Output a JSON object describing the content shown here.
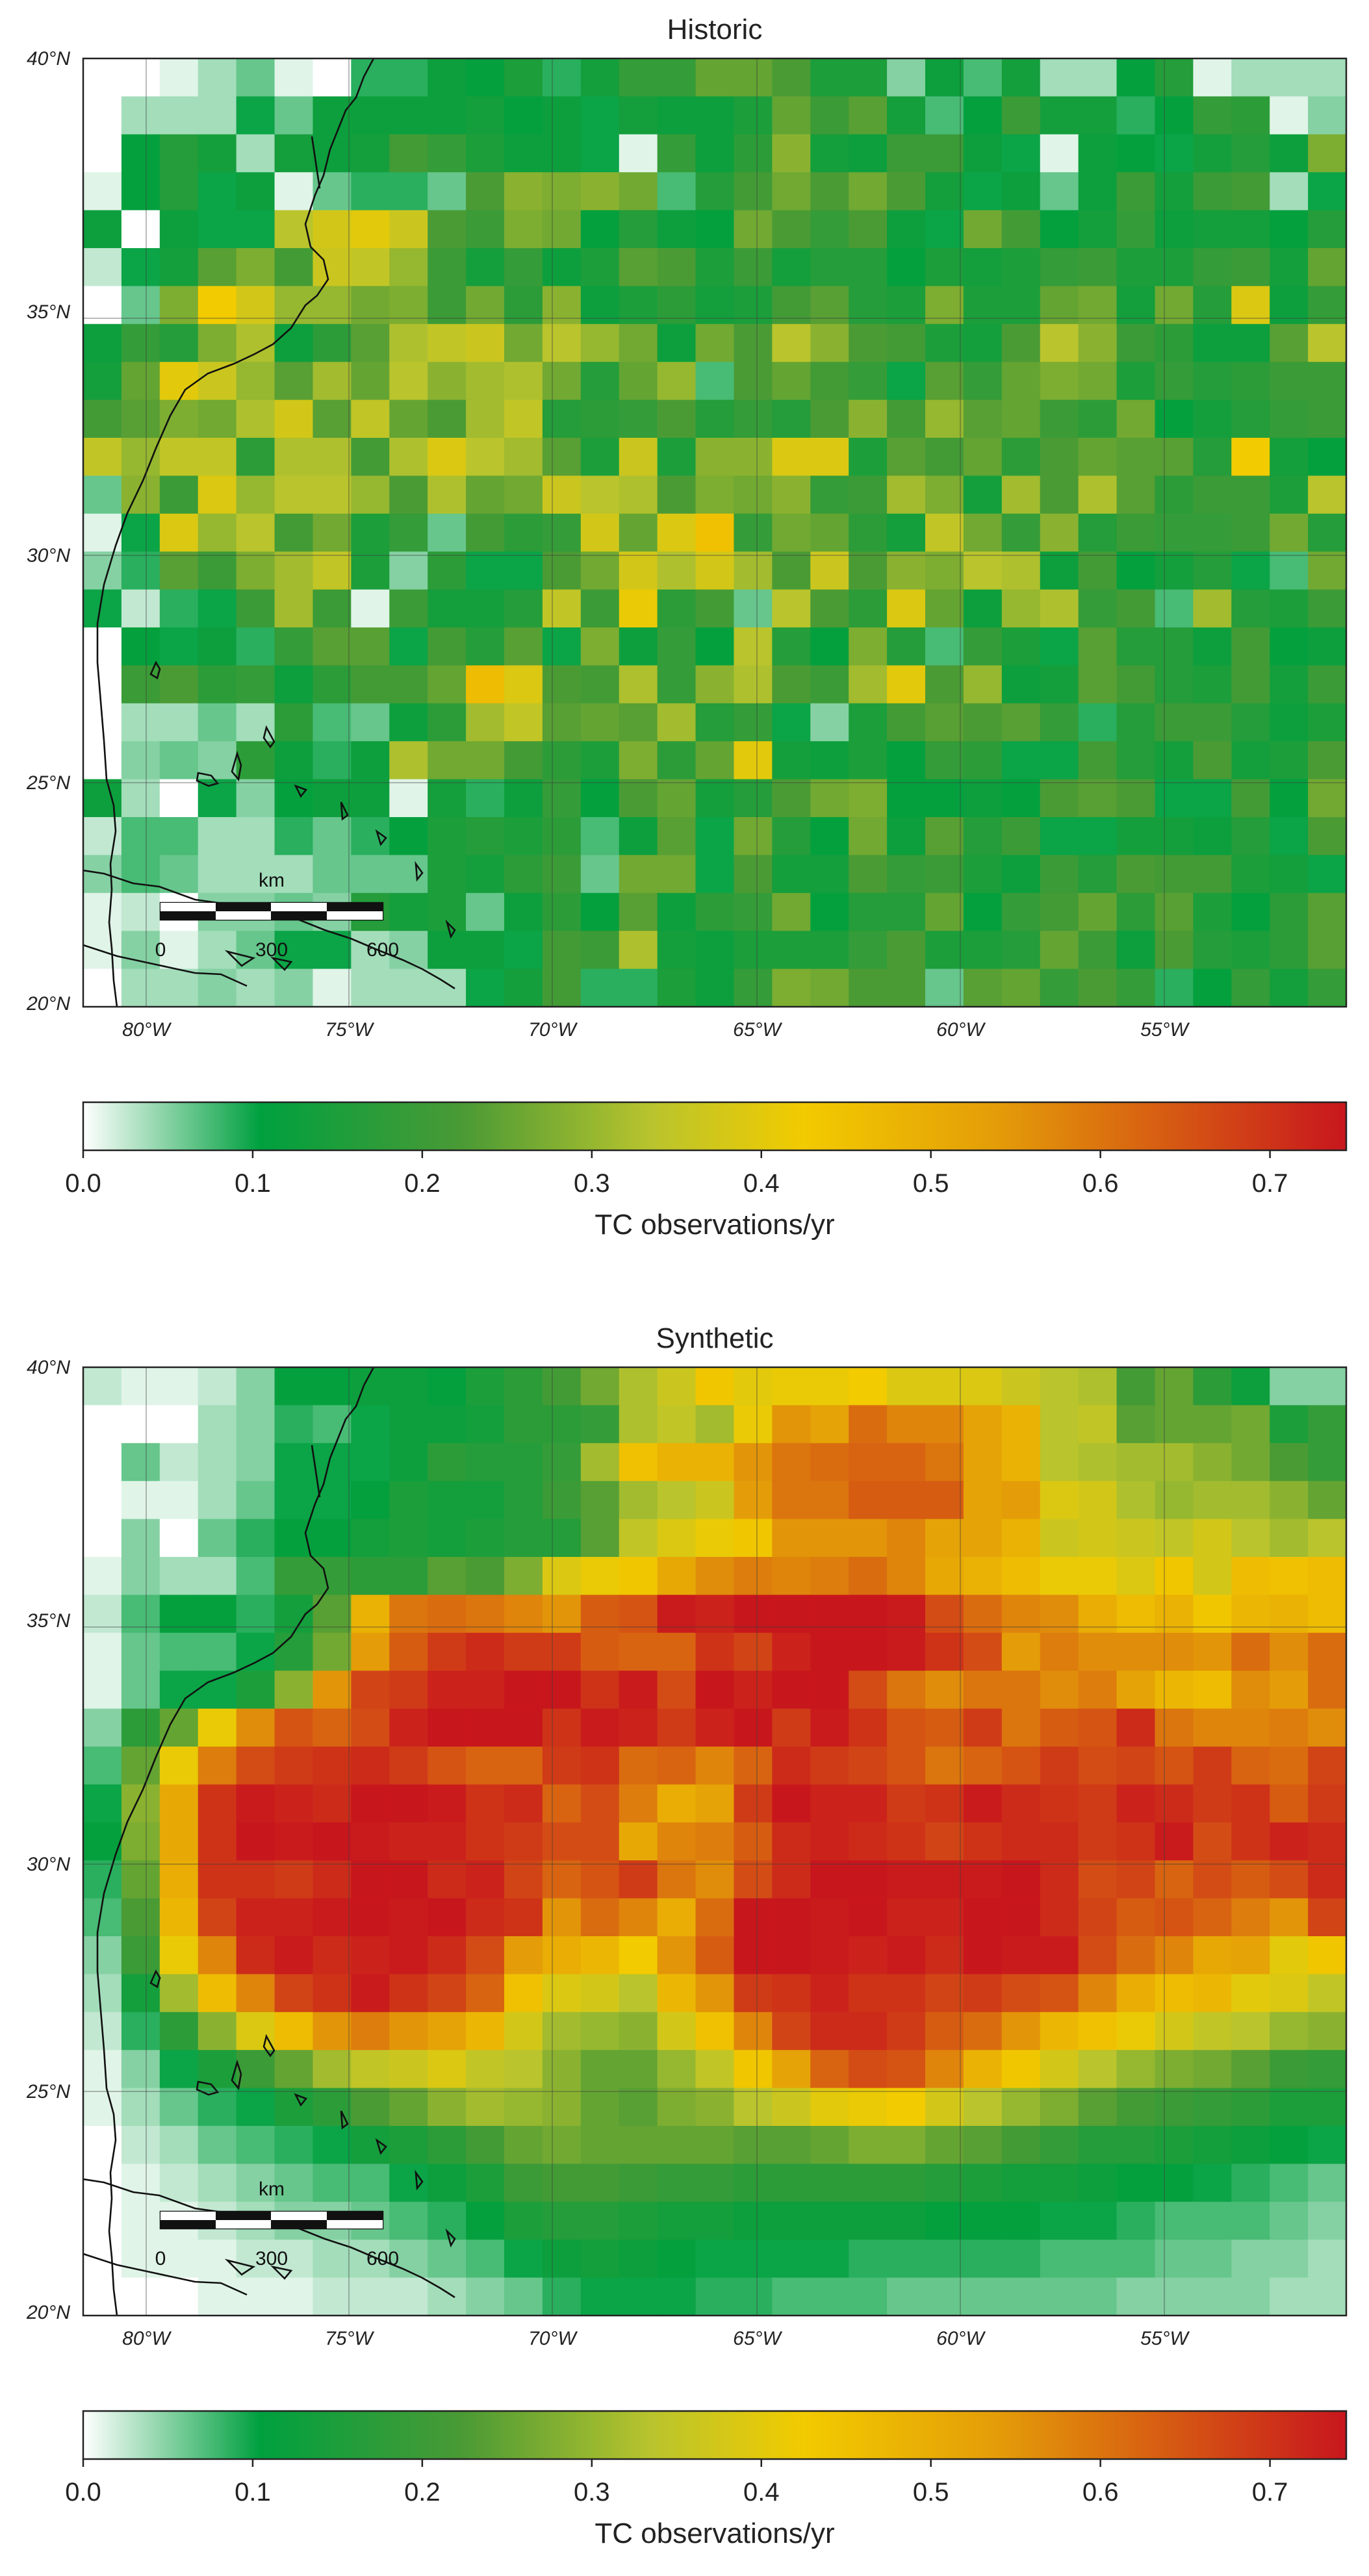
{
  "panels": [
    {
      "title": "Historic",
      "grid": [
        "0,0,1,3,5,1,0,7,7,10,9,12,7,11,15,15,20,20,18,12,12,4,10,6,11,3,3,9,13,1,3,3,3",
        "0,3,3,3,8,5,10,10,10,10,11,9,10,8,11,10,10,12,20,16,19,11,6,9,16,11,11,7,9,15,14,1,4",
        "0,9,13,11,3,11,10,11,17,15,12,10,10,8,1,15,10,14,23,11,10,16,16,10,8,1,10,9,8,11,13,10,22",
        "1,9,13,8,10,1,5,7,7,5,18,23,22,23,21,6,13,17,21,18,21,18,11,8,10,5,10,16,11,16,17,3,8",
        "10,0,10,8,8,27,30,32,29,18,16,22,21,9,13,10,9,21,18,15,18,10,8,21,17,9,11,15,10,11,11,9,13",
        "2,8,11,19,22,17,29,28,24,16,11,15,10,12,19,18,12,16,11,13,13,9,12,11,12,15,16,12,12,15,16,11,20",
        "0,5,22,34,30,24,24,21,22,16,21,14,23,10,12,14,11,12,17,19,13,12,22,12,12,20,21,11,21,13,31,10,15",
        "10,15,13,22,26,10,14,19,26,28,29,21,27,24,21,10,21,18,27,23,18,17,12,11,18,27,23,16,14,10,10,19,27",
        "11,20,32,29,24,19,25,20,27,23,25,26,21,13,20,24,6,18,20,17,15,8,19,15,20,22,21,12,15,13,14,16,16",
        "17,19,22,21,26,30,19,28,20,18,25,28,13,14,15,18,13,15,13,18,23,17,24,19,20,16,14,21,9,11,13,15,16",
        "28,24,28,28,14,26,26,17,26,31,27,25,19,12,29,12,23,23,31,31,12,19,17,20,14,18,20,19,19,13,34,11,9",
        "5,23,16,31,24,27,27,24,18,26,20,21,29,27,26,18,22,21,23,15,16,25,22,11,25,18,26,19,14,16,16,12,27",
        "1,8,31,24,27,17,21,12,15,5,17,14,15,30,20,31,36,15,21,20,14,11,28,21,15,23,13,16,15,15,16,21,13",
        "4,7,19,16,22,25,28,12,4,14,8,8,18,21,30,26,30,25,18,29,18,23,22,27,26,10,17,9,11,13,8,6,21",
        "8,2,7,8,16,25,16,1,16,11,11,13,28,16,33,14,17,5,27,18,14,31,20,10,24,26,15,17,6,25,13,12,16",
        "0,9,8,10,7,15,19,19,8,17,13,19,8,22,10,15,9,27,13,9,22,13,6,15,12,8,19,13,13,10,17,9,10",
        "0,16,18,14,15,10,14,17,17,20,37,31,18,17,26,15,23,26,18,16,25,32,18,24,10,11,19,17,13,12,17,11,16",
        "0,3,3,5,3,14,6,5,10,14,25,28,19,20,19,25,13,15,8,4,12,17,19,18,19,15,7,13,16,16,13,10,12",
        "0,4,5,4,14,10,7,10,26,21,21,17,14,12,22,14,20,32,11,10,12,9,15,14,8,8,17,13,11,18,11,12,18",
        "10,3,0,8,4,9,10,10,1,11,7,10,15,9,18,20,11,13,18,21,22,9,9,10,9,18,19,18,8,8,17,9,21",
        "2,6,6,3,3,7,5,7,9,12,13,12,14,6,10,19,8,21,13,9,21,10,19,13,16,8,8,11,11,10,13,8,18",
        "4,6,5,3,3,3,5,5,5,12,11,14,16,5,21,21,8,18,11,11,18,15,16,12,10,16,13,18,17,17,12,11,8",
        "1,2,0,4,4,5,4,13,11,12,5,10,14,9,19,10,14,15,21,9,13,13,20,9,15,17,20,14,19,12,9,14,19",
        "1,4,1,3,5,8,8,3,4,10,10,8,17,16,26,11,10,12,12,12,15,18,12,12,13,20,16,10,18,13,12,14,19",
        "0,3,3,4,3,4,1,3,3,3,8,11,17,7,7,12,10,15,22,21,18,18,5,19,20,15,18,15,7,9,15,11,15"
      ]
    },
    {
      "title": "Synthetic",
      "grid": [
        "2,1,1,2,4,9,9,10,10,9,12,14,17,21,26,29,35,32,33,33,34,31,31,31,29,27,26,17,20,14,10,4,4",
        "0,0,0,3,4,7,6,8,10,10,11,14,14,15,26,28,25,33,44,42,49,46,46,42,39,27,28,19,20,20,21,12,15",
        "0,5,2,3,4,8,8,8,10,14,13,13,15,25,36,39,39,44,48,49,50,50,48,42,39,27,26,25,25,23,21,18,15",
        "0,1,1,3,5,8,8,9,12,11,11,13,16,19,25,27,29,43,48,48,51,51,51,42,43,31,30,26,24,25,25,23,20",
        "0,4,0,5,7,9,9,11,12,11,12,13,13,19,28,31,33,35,44,44,44,46,42,42,39,29,30,29,28,30,27,25,27",
        "1,4,3,3,6,15,15,14,14,19,18,22,31,33,35,41,45,47,46,47,49,46,41,39,37,33,33,31,35,30,37,36,37",
        "2,6,9,9,7,11,19,39,48,49,48,46,44,51,52,59,58,60,62,60,61,59,53,49,46,45,40,37,39,35,38,39,37",
        "1,5,6,6,8,13,21,43,51,55,57,55,55,51,50,50,56,54,58,61,60,59,56,53,43,47,45,45,45,44,49,45,49",
        "1,5,8,8,12,23,44,54,55,58,58,61,62,56,59,53,60,58,60,60,53,48,45,48,48,45,47,42,38,37,45,43,49",
        "4,14,20,33,45,52,50,53,58,60,61,60,56,59,58,55,58,62,55,59,56,52,51,55,48,51,52,57,48,46,46,47,45",
        "6,20,33,47,53,55,56,57,55,52,50,50,55,56,49,50,46,50,57,55,54,52,48,50,52,55,53,54,52,55,50,49,54",
        "8,23,41,56,59,58,57,61,60,59,56,57,50,53,47,40,42,55,60,58,58,55,56,59,57,56,55,58,57,55,56,51,55",
        "9,22,41,56,60,59,60,59,58,58,56,55,53,53,41,46,47,51,57,58,57,56,54,56,57,57,55,56,59,53,56,58,57",
        "7,20,40,56,56,55,57,61,60,57,58,54,50,52,55,48,45,53,57,61,62,59,59,59,60,57,53,54,50,53,51,53,57",
        "6,18,38,54,58,58,59,61,59,60,57,56,44,49,46,40,49,60,60,59,60,58,58,60,61,57,54,51,52,50,47,44,54",
        "4,16,33,46,57,59,57,58,59,57,53,43,40,38,34,44,51,61,61,59,58,59,57,61,59,59,53,49,46,41,42,32,35",
        "3,11,25,37,46,54,56,59,56,54,50,36,31,30,27,38,44,55,56,58,56,56,54,55,53,52,46,40,37,38,32,31,28",
        "2,7,14,23,31,37,44,47,44,42,38,30,25,24,23,30,36,46,54,57,57,55,51,49,44,38,36,33,30,28,27,24,23",
        "1,4,8,12,16,20,25,28,29,31,28,27,23,20,20,24,28,35,42,50,53,52,46,39,35,30,27,24,22,21,19,16,15",
        "1,3,5,7,8,12,14,18,20,23,25,24,23,20,19,22,23,27,29,32,33,34,30,27,24,22,19,17,16,15,14,12,12",
        "0,2,3,5,6,7,8,11,12,14,17,20,21,20,20,20,20,19,19,20,22,22,20,19,17,15,13,13,12,11,10,9,8",
        "0,1,2,3,4,5,6,6,8,10,12,16,17,17,16,15,15,14,14,14,14,14,13,12,11,11,10,9,9,8,7,6,5",
        "0,1,1,2,3,4,4,5,6,7,9,12,13,13,12,11,11,10,10,10,10,10,9,9,9,8,8,7,6,6,6,5,4",
        "0,1,1,1,2,2,3,3,4,5,6,8,10,11,10,9,8,8,8,8,7,7,7,7,7,6,6,6,5,5,4,4,3",
        "0,0,0,1,1,1,2,2,2,3,4,5,7,8,8,8,7,7,6,6,6,5,5,5,5,5,5,4,4,4,4,3,3"
      ]
    }
  ],
  "grid_info": {
    "lon_start": -82,
    "lon_step": 1,
    "lat_start": 40,
    "lat_step": -0.8,
    "value_scale": 0.0125,
    "note": "cell values = grid number * value_scale (TC observations/yr)"
  },
  "lat_labels": [
    "40°N",
    "35°N",
    "30°N",
    "25°N",
    "20°N"
  ],
  "lon_labels": [
    "80°W",
    "75°W",
    "70°W",
    "65°W",
    "60°W",
    "55°W"
  ],
  "colorbar": {
    "label": "TC observations/yr",
    "ticks": [
      "0.0",
      "0.1",
      "0.2",
      "0.3",
      "0.4",
      "0.5",
      "0.6",
      "0.7"
    ],
    "stops": [
      "#ffffff",
      "#00a03f",
      "#4a9a35",
      "#b9c42d",
      "#f2cb00",
      "#e49e08",
      "#c8161d"
    ],
    "max": 0.745
  },
  "scalebar": {
    "unit": "km",
    "ticks": [
      "0",
      "300",
      "600"
    ]
  }
}
